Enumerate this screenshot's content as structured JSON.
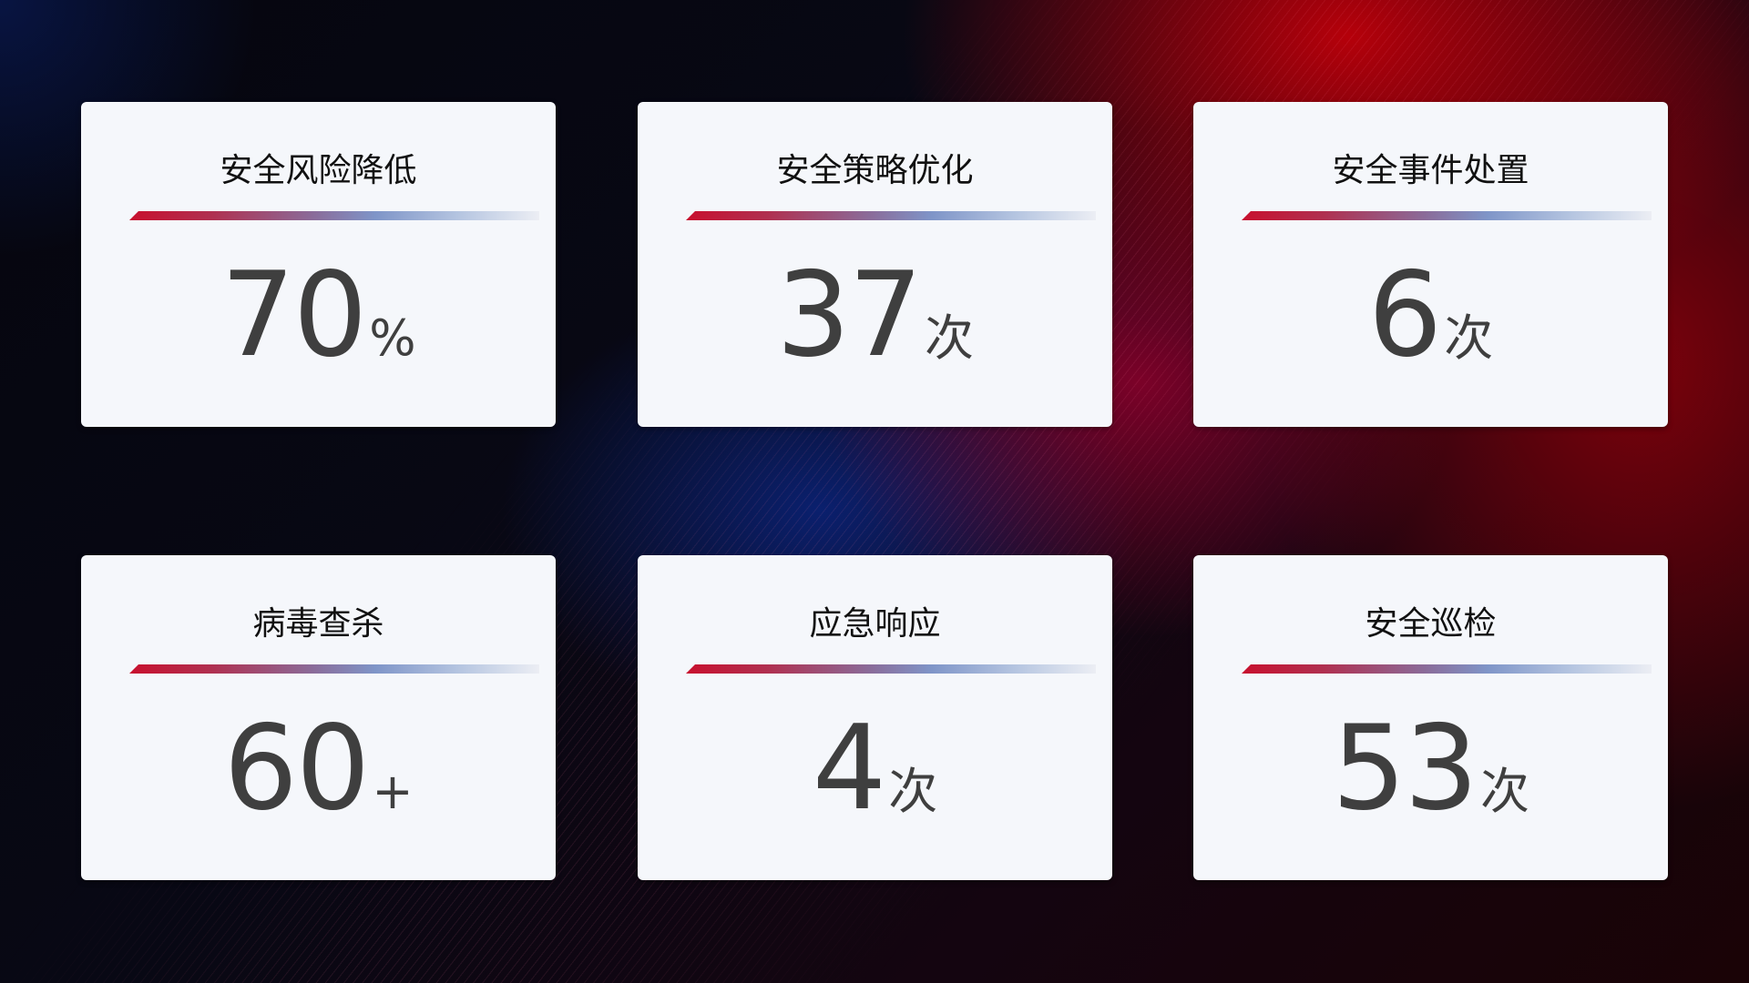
{
  "cards": [
    {
      "title": "安全风险降低",
      "value": "70",
      "unit": "%"
    },
    {
      "title": "安全策略优化",
      "value": "37",
      "unit": "次"
    },
    {
      "title": "安全事件处置",
      "value": "6",
      "unit": "次"
    },
    {
      "title": "病毒查杀",
      "value": "60",
      "unit": "+"
    },
    {
      "title": "应急响应",
      "value": "4",
      "unit": "次"
    },
    {
      "title": "安全巡检",
      "value": "53",
      "unit": "次"
    }
  ],
  "colors": {
    "accent_red": "#c8102e",
    "accent_blue": "#7f95c8",
    "card_bg": "#f5f7fb",
    "value_text": "#3f3f3f"
  }
}
